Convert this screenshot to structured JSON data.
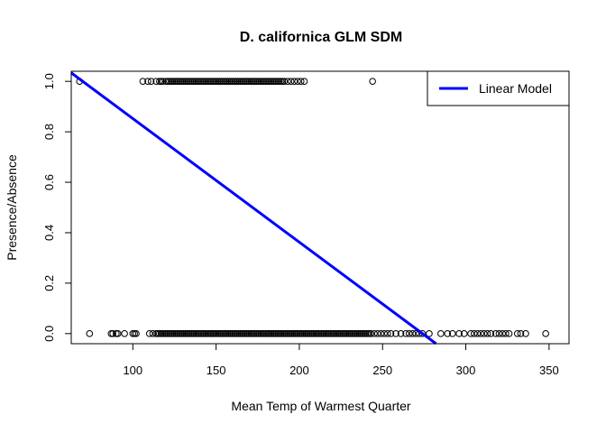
{
  "chart_data": {
    "type": "scatter",
    "title": "D. californica GLM SDM",
    "xlabel": "Mean Temp of Warmest Quarter",
    "ylabel": "Presence/Absence",
    "xlim": [
      63,
      362
    ],
    "ylim": [
      -0.04,
      1.04
    ],
    "x_ticks": [
      100,
      150,
      200,
      250,
      300,
      350
    ],
    "x_tick_labels": [
      "100",
      "150",
      "200",
      "250",
      "300",
      "350"
    ],
    "y_ticks": [
      0,
      0.2,
      0.4,
      0.6,
      0.8,
      1.0
    ],
    "y_tick_labels": [
      "0.0",
      "0.2",
      "0.4",
      "0.6",
      "0.8",
      "1.0"
    ],
    "grid": false,
    "legend": {
      "position": "top-right",
      "entries": [
        {
          "label": "Linear Model",
          "color": "#0000ff"
        }
      ]
    },
    "series": [
      {
        "kind": "points",
        "color": "#000000",
        "marker": "open-circle",
        "presence_y": 1,
        "presence_x": [
          68,
          106,
          109,
          111,
          114,
          116,
          117,
          118,
          120,
          121,
          122,
          123,
          124,
          125,
          126,
          127,
          128,
          129,
          130,
          131,
          132,
          133,
          134,
          135,
          136,
          137,
          138,
          139,
          140,
          141,
          142,
          143,
          144,
          145,
          146,
          147,
          148,
          149,
          150,
          151,
          152,
          153,
          154,
          155,
          156,
          157,
          158,
          159,
          160,
          161,
          162,
          163,
          164,
          165,
          166,
          167,
          168,
          169,
          170,
          171,
          172,
          173,
          174,
          175,
          176,
          177,
          178,
          179,
          180,
          181,
          182,
          183,
          184,
          185,
          186,
          187,
          188,
          189,
          190,
          191,
          193,
          195,
          197,
          199,
          201,
          203,
          244
        ],
        "absence_y": 0,
        "absence_x": [
          74,
          87,
          88,
          90,
          91,
          95,
          100,
          101,
          102,
          110,
          112,
          114,
          115,
          116,
          117,
          118,
          119,
          120,
          121,
          122,
          123,
          124,
          125,
          126,
          127,
          128,
          129,
          130,
          131,
          132,
          133,
          134,
          135,
          136,
          137,
          138,
          139,
          140,
          141,
          142,
          143,
          144,
          145,
          146,
          147,
          148,
          149,
          150,
          151,
          152,
          153,
          154,
          155,
          156,
          157,
          158,
          159,
          160,
          161,
          162,
          163,
          164,
          165,
          166,
          167,
          168,
          169,
          170,
          171,
          172,
          173,
          174,
          175,
          176,
          177,
          178,
          179,
          180,
          181,
          182,
          183,
          184,
          185,
          186,
          187,
          188,
          189,
          190,
          191,
          192,
          193,
          194,
          195,
          196,
          197,
          198,
          199,
          200,
          201,
          202,
          203,
          204,
          205,
          206,
          207,
          208,
          209,
          210,
          211,
          212,
          213,
          214,
          215,
          216,
          217,
          218,
          219,
          220,
          221,
          222,
          223,
          224,
          225,
          226,
          227,
          228,
          229,
          230,
          231,
          232,
          233,
          234,
          235,
          236,
          237,
          238,
          239,
          240,
          241,
          242,
          243,
          245,
          247,
          249,
          251,
          253,
          255,
          258,
          261,
          264,
          266,
          268,
          270,
          272,
          274,
          278,
          285,
          289,
          292,
          296,
          299,
          303,
          305,
          307,
          309,
          311,
          313,
          315,
          318,
          320,
          322,
          324,
          326,
          331,
          333,
          336,
          348
        ]
      },
      {
        "kind": "line",
        "name": "Linear Model",
        "color": "#0000ff",
        "intercept": 1.3424,
        "slope": -0.0049
      }
    ]
  }
}
